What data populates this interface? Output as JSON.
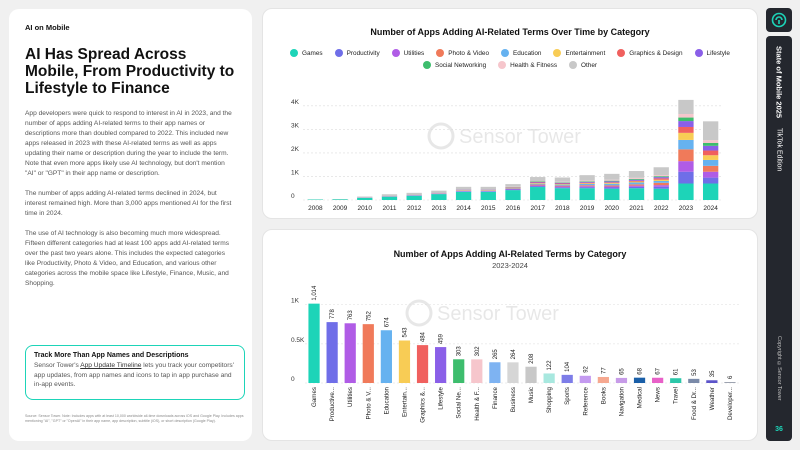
{
  "left": {
    "section": "AI on Mobile",
    "headline": "AI Has Spread Across Mobile, From Productivity to Lifestyle to Finance",
    "paragraphs": [
      "App developers were quick to respond to interest in AI in 2023, and the number of apps adding AI-related terms to their app names or descriptions more than doubled compared to 2022. This included new apps released in 2023 with these AI-related terms as well as apps updating their name or description during the year to include the term. Note that even more apps likely use AI technology, but don't mention \"AI\" or \"GPT\" in their app name or description.",
      "The number of apps adding AI-related terms declined in 2024, but interest remained high. More than 3,000 apps mentioned AI for the first time in 2024.",
      "The use of AI technology is also becoming much more widespread. Fifteen different categories had at least 100 apps add AI-related terms over the past two years alone. This includes the expected categories like Productivity, Photo & Video, and Education, and various other categories across the mobile space like Lifestyle, Finance, Music, and Shopping."
    ],
    "callout_title": "Track More Than App Names and Descriptions",
    "callout_pre": "Sensor Tower's ",
    "callout_link": "App Update Timeline",
    "callout_post": " lets you track your competitors' app updates, from app names and icons to tap in app purchase and in-app events.",
    "source": "Source: Sensor Tower. Note: Includes apps with at least 10,000 worldwide all-time downloads across iOS and Google Play. Includes apps mentioning \"AI\", \"GPT\" or \"OpenAI\" in their app name, app description, subtitle (iOS), or short description (Google Play)."
  },
  "sidebar": {
    "title": "State of Mobile 2025",
    "edition": "TikTok Edition",
    "copyright": "Copyright ©Sensor Tower",
    "page": "36"
  },
  "colors": {
    "accent": "#1dd4b8",
    "dark": "#24272e"
  },
  "chart_data": [
    {
      "type": "bar",
      "stacked": true,
      "title": "Number of Apps Adding AI-Related Terms Over Time by Category",
      "xlabel": "",
      "ylabel": "",
      "ylim": [
        0,
        4500
      ],
      "yticks": [
        0,
        1000,
        2000,
        3000,
        4000
      ],
      "ytick_labels": [
        "0",
        "1K",
        "2K",
        "3K",
        "4K"
      ],
      "categories": [
        "2008",
        "2009",
        "2010",
        "2011",
        "2012",
        "2013",
        "2014",
        "2015",
        "2016",
        "2017",
        "2018",
        "2019",
        "2020",
        "2021",
        "2022",
        "2023",
        "2024"
      ],
      "series": [
        {
          "name": "Games",
          "color": "#1dd4b8",
          "values": [
            20,
            30,
            90,
            140,
            180,
            250,
            350,
            350,
            420,
            550,
            500,
            500,
            480,
            500,
            480,
            700,
            700
          ]
        },
        {
          "name": "Productivity",
          "color": "#6f6ee8",
          "values": [
            0,
            0,
            5,
            8,
            10,
            12,
            20,
            20,
            25,
            40,
            40,
            45,
            50,
            60,
            80,
            500,
            250
          ]
        },
        {
          "name": "Utilities",
          "color": "#b05ce6",
          "values": [
            0,
            0,
            5,
            8,
            10,
            12,
            15,
            15,
            20,
            30,
            35,
            40,
            45,
            50,
            70,
            450,
            250
          ]
        },
        {
          "name": "Photo & Video",
          "color": "#f07a5a",
          "values": [
            0,
            0,
            3,
            5,
            6,
            8,
            15,
            15,
            20,
            35,
            35,
            40,
            45,
            55,
            100,
            500,
            250
          ]
        },
        {
          "name": "Education",
          "color": "#66b2f0",
          "values": [
            0,
            0,
            3,
            5,
            6,
            8,
            15,
            15,
            20,
            40,
            45,
            55,
            70,
            80,
            80,
            400,
            250
          ]
        },
        {
          "name": "Entertainment",
          "color": "#f8cc55",
          "values": [
            0,
            0,
            3,
            5,
            5,
            6,
            10,
            10,
            15,
            25,
            25,
            30,
            35,
            40,
            50,
            300,
            200
          ]
        },
        {
          "name": "Graphics & Design",
          "color": "#f0605e",
          "values": [
            0,
            0,
            2,
            3,
            4,
            5,
            8,
            8,
            10,
            20,
            20,
            25,
            25,
            30,
            60,
            250,
            200
          ]
        },
        {
          "name": "Lifestyle",
          "color": "#8a5fe8",
          "values": [
            0,
            0,
            2,
            4,
            5,
            6,
            10,
            10,
            15,
            25,
            30,
            35,
            40,
            45,
            50,
            250,
            200
          ]
        },
        {
          "name": "Social Networking",
          "color": "#3dbd6d",
          "values": [
            0,
            0,
            2,
            3,
            4,
            5,
            8,
            8,
            10,
            20,
            20,
            25,
            30,
            35,
            40,
            150,
            120
          ]
        },
        {
          "name": "Health & Fitness",
          "color": "#f6c6cc",
          "values": [
            0,
            0,
            2,
            3,
            4,
            5,
            8,
            8,
            10,
            20,
            25,
            30,
            40,
            45,
            50,
            150,
            120
          ]
        },
        {
          "name": "Other",
          "color": "#c8c8c8",
          "values": [
            5,
            10,
            30,
            60,
            70,
            80,
            100,
            100,
            110,
            170,
            180,
            230,
            250,
            290,
            330,
            600,
            800
          ]
        }
      ]
    },
    {
      "type": "bar",
      "title": "Number of Apps Adding AI-Related Terms by Category",
      "subtitle": "2023-2024",
      "xlabel": "",
      "ylabel": "",
      "ylim": [
        0,
        1150
      ],
      "yticks": [
        0,
        500,
        1000
      ],
      "ytick_labels": [
        "0",
        "0.5K",
        "1K"
      ],
      "categories": [
        "Games",
        "Productive...",
        "Utilities",
        "Photo & V...",
        "Education",
        "Entertain...",
        "Graphics &...",
        "Lifestyle",
        "Social Ne...",
        "Health & F...",
        "Finance",
        "Business",
        "Music",
        "Shopping",
        "Sports",
        "Reference",
        "Books",
        "Navigation",
        "Medical",
        "News",
        "Travel",
        "Food & Dr...",
        "Weather",
        "Developer..."
      ],
      "values": [
        1014,
        778,
        763,
        752,
        674,
        543,
        484,
        459,
        303,
        302,
        265,
        264,
        208,
        122,
        104,
        92,
        77,
        65,
        68,
        67,
        61,
        53,
        35,
        6
      ],
      "value_labels": [
        "1,014",
        "778",
        "763",
        "752",
        "674",
        "543",
        "484",
        "459",
        "303",
        "302",
        "265",
        "264",
        "208",
        "122",
        "104",
        "92",
        "77",
        "65",
        "68",
        "67",
        "61",
        "53",
        "35",
        "6"
      ],
      "colors": [
        "#1dd4b8",
        "#6f6ee8",
        "#b05ce6",
        "#f07a5a",
        "#66b2f0",
        "#f8cc55",
        "#f0605e",
        "#8a5fe8",
        "#3dbd6d",
        "#f6c6cc",
        "#7eb3f2",
        "#d6d6d6",
        "#c8c8c8",
        "#a8e8df",
        "#7d7de8",
        "#c49af0",
        "#f6a890",
        "#c79be8",
        "#1a5fa8",
        "#e860c8",
        "#2cc7a9",
        "#7a8aa8",
        "#5b53c9",
        "#9da3b0"
      ]
    }
  ]
}
